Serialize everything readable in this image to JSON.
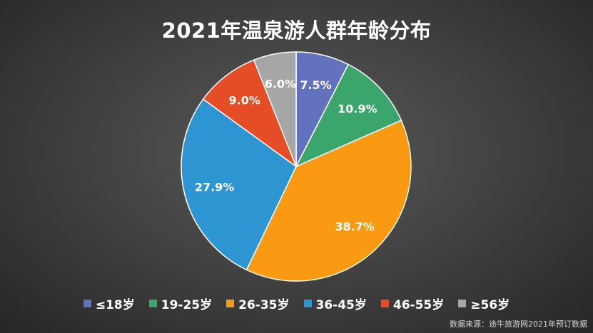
{
  "source": "数据来源：途牛旅游网2021年预订数据",
  "chart_data": {
    "type": "pie",
    "title": "2021年温泉游人群年龄分布",
    "legend_position": "bottom",
    "slices": [
      {
        "label": "≤18岁",
        "value": 7.5,
        "value_label": "7.5%",
        "color": "#6272bd"
      },
      {
        "label": "19-25岁",
        "value": 10.9,
        "value_label": "10.9%",
        "color": "#3aa66c"
      },
      {
        "label": "26-35岁",
        "value": 38.7,
        "value_label": "38.7%",
        "color": "#f99a12"
      },
      {
        "label": "36-45岁",
        "value": 27.9,
        "value_label": "27.9%",
        "color": "#2d95d2"
      },
      {
        "label": "46-55岁",
        "value": 9.0,
        "value_label": "9.0%",
        "color": "#e44d26"
      },
      {
        "label": "≥56岁",
        "value": 6.0,
        "value_label": "6.0%",
        "color": "#a6a6a6"
      }
    ]
  }
}
